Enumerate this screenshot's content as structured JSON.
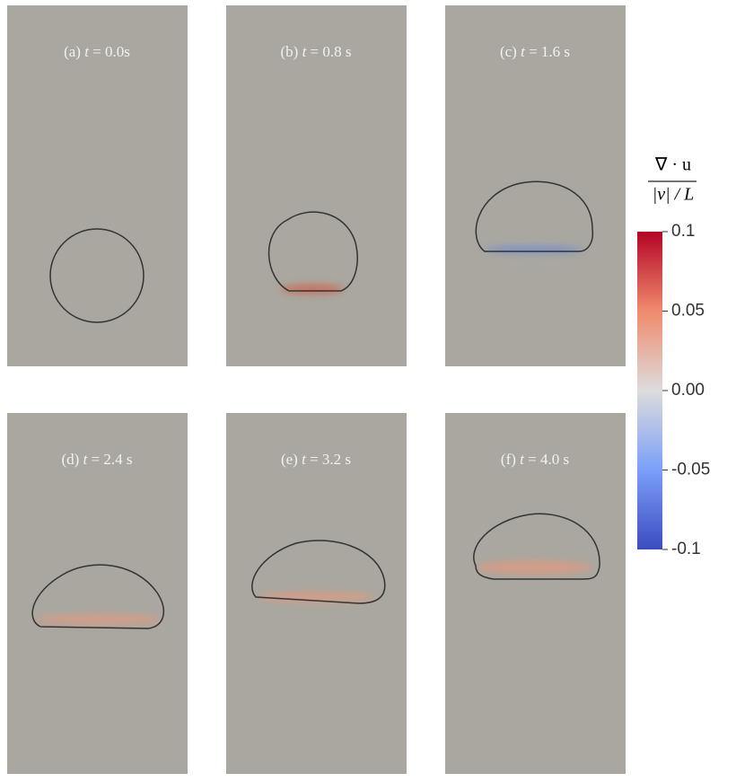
{
  "panels": [
    {
      "letter": "(a)",
      "var": "t",
      "value": "= 0.0s"
    },
    {
      "letter": "(b)",
      "var": "t",
      "value": "= 0.8 s"
    },
    {
      "letter": "(c)",
      "var": "t",
      "value": "= 1.6 s"
    },
    {
      "letter": "(d)",
      "var": "t",
      "value": "= 2.4 s"
    },
    {
      "letter": "(e)",
      "var": "t",
      "value": "= 3.2 s"
    },
    {
      "letter": "(f)",
      "var": "t",
      "value": "= 4.0 s"
    }
  ],
  "colorbar": {
    "numerator": "∇ · u",
    "denominator": "|v| / L",
    "range": [
      -0.1,
      0.1
    ],
    "ticks": [
      0.1,
      0.05,
      {
        "value": 0,
        "label": "0.00"
      },
      -0.05,
      -0.1
    ]
  }
}
